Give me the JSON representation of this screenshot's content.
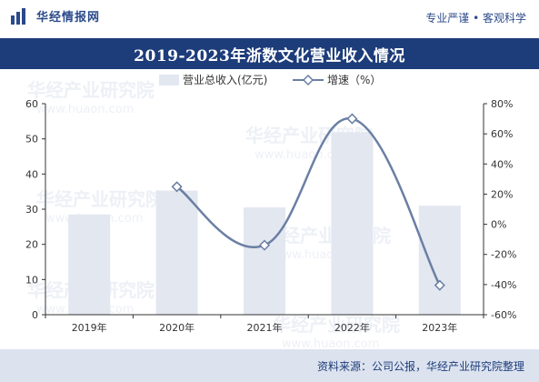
{
  "header": {
    "brand": "华经情报网",
    "slogan": "专业严谨 • 客观科学"
  },
  "footer": {
    "source": "资料来源：公司公报，华经产业研究院整理"
  },
  "watermarks": [
    "华经产业研究院",
    "www.huaon.com"
  ],
  "chart_data": {
    "type": "bar",
    "title": "2019-2023年浙数文化营业收入情况",
    "categories": [
      "2019年",
      "2020年",
      "2021年",
      "2022年",
      "2023年"
    ],
    "series": [
      {
        "name": "营业总收入(亿元)",
        "type": "bar",
        "axis": "left",
        "values": [
          28.5,
          35.3,
          30.5,
          51.9,
          31.0
        ],
        "color": "#e3e7f0"
      },
      {
        "name": "增速（%）",
        "type": "line",
        "axis": "right",
        "values": [
          null,
          24.9,
          -13.9,
          70.0,
          -40.5
        ],
        "color": "#6b7fa3"
      }
    ],
    "y_left": {
      "min": 0,
      "max": 60,
      "ticks": [
        0,
        10,
        20,
        30,
        40,
        50,
        60
      ]
    },
    "y_right": {
      "min": -60,
      "max": 80,
      "ticks": [
        "-60%",
        "-40%",
        "-20%",
        "0%",
        "20%",
        "40%",
        "60%",
        "80%"
      ]
    },
    "legend": "top-center",
    "grid": false
  }
}
